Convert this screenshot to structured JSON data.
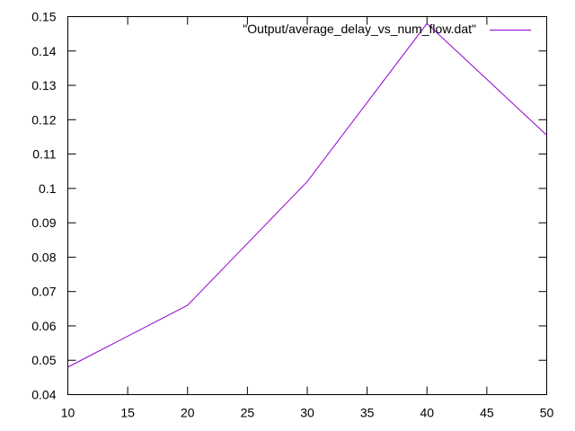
{
  "chart_data": {
    "type": "line",
    "title": "",
    "xlabel": "",
    "ylabel": "",
    "xlim": [
      10,
      50
    ],
    "ylim": [
      0.04,
      0.15
    ],
    "x_ticks": [
      10,
      15,
      20,
      25,
      30,
      35,
      40,
      45,
      50
    ],
    "y_ticks": [
      0.04,
      0.05,
      0.06,
      0.07,
      0.08,
      0.09,
      0.1,
      0.11,
      0.12,
      0.13,
      0.14,
      0.15
    ],
    "x_tick_labels": [
      "10",
      "15",
      "20",
      "25",
      "30",
      "35",
      "40",
      "45",
      "50"
    ],
    "y_tick_labels": [
      "0.04",
      "0.05",
      "0.06",
      "0.07",
      "0.08",
      "0.09",
      "0.1",
      "0.11",
      "0.12",
      "0.13",
      "0.14",
      "0.15"
    ],
    "grid": false,
    "legend_position": "top-right",
    "series": [
      {
        "name": "\"Output/average_delay_vs_num_flow.dat\"",
        "color": "#9400d3",
        "x": [
          10,
          20,
          30,
          40,
          50
        ],
        "y": [
          0.048,
          0.066,
          0.102,
          0.148,
          0.1155
        ]
      }
    ]
  }
}
